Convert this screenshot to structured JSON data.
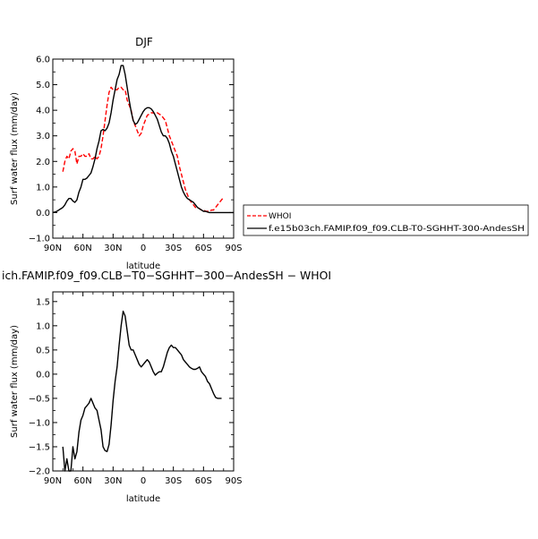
{
  "chart_data": [
    {
      "type": "line",
      "title": "DJF",
      "xlabel": "latitude",
      "ylabel": "Surf water flux (mm/day)",
      "xlim": [
        90,
        -90
      ],
      "ylim": [
        -1.0,
        6.0
      ],
      "xticks": [
        90,
        60,
        30,
        0,
        -30,
        -60,
        -90
      ],
      "xtick_labels": [
        "90N",
        "60N",
        "30N",
        "0",
        "30S",
        "60S",
        "90S"
      ],
      "yticks": [
        -1,
        0,
        1,
        2,
        3,
        4,
        5,
        6
      ],
      "ytick_labels": [
        "−1.0",
        "0.0",
        "1.0",
        "2.0",
        "3.0",
        "4.0",
        "5.0",
        "6.0"
      ],
      "legend_position": "outside-right",
      "series": [
        {
          "name": "WHOI",
          "color": "#ff0000",
          "dash": "dashed",
          "x": [
            80,
            78,
            76,
            74,
            72,
            70,
            68,
            66,
            64,
            62,
            60,
            58,
            56,
            54,
            52,
            50,
            48,
            46,
            44,
            42,
            40,
            38,
            36,
            34,
            32,
            30,
            28,
            26,
            24,
            22,
            20,
            18,
            16,
            14,
            12,
            10,
            8,
            6,
            4,
            2,
            0,
            -2,
            -4,
            -6,
            -8,
            -10,
            -12,
            -14,
            -16,
            -18,
            -20,
            -22,
            -24,
            -26,
            -28,
            -30,
            -32,
            -34,
            -36,
            -38,
            -40,
            -42,
            -44,
            -46,
            -48,
            -50,
            -52,
            -54,
            -56,
            -58,
            -60,
            -62,
            -64,
            -66,
            -68,
            -70,
            -72,
            -74,
            -76,
            -78,
            -80
          ],
          "y": [
            1.6,
            2.0,
            2.2,
            2.1,
            2.4,
            2.5,
            2.4,
            1.9,
            2.2,
            2.2,
            2.3,
            2.2,
            2.2,
            2.3,
            2.1,
            2.1,
            2.2,
            2.1,
            2.2,
            2.5,
            3.0,
            3.6,
            4.2,
            4.7,
            4.9,
            4.8,
            4.8,
            4.8,
            4.9,
            4.9,
            4.8,
            4.8,
            4.4,
            4.2,
            4.0,
            3.6,
            3.4,
            3.2,
            3.0,
            3.1,
            3.4,
            3.6,
            3.8,
            3.85,
            3.9,
            3.9,
            3.85,
            3.9,
            3.85,
            3.8,
            3.7,
            3.6,
            3.3,
            3.0,
            2.8,
            2.6,
            2.4,
            2.2,
            1.8,
            1.5,
            1.2,
            0.9,
            0.7,
            0.5,
            0.4,
            0.3,
            0.2,
            0.2,
            0.15,
            0.1,
            0.1,
            0.05,
            0.05,
            0.05,
            0.1,
            0.1,
            0.2,
            0.3,
            0.4,
            0.5,
            0.6
          ]
        },
        {
          "name": "f.e15b03ch.FAMIP.f09_f09.CLB-T0-SGHHT-300-AndesSH",
          "color": "#000000",
          "dash": "solid",
          "x": [
            90,
            88,
            86,
            84,
            82,
            80,
            78,
            76,
            74,
            72,
            70,
            68,
            66,
            64,
            62,
            60,
            58,
            56,
            54,
            52,
            50,
            48,
            46,
            44,
            42,
            40,
            38,
            36,
            34,
            32,
            30,
            28,
            26,
            24,
            22,
            20,
            18,
            16,
            14,
            12,
            10,
            8,
            6,
            4,
            2,
            0,
            -2,
            -4,
            -6,
            -8,
            -10,
            -12,
            -14,
            -16,
            -18,
            -20,
            -22,
            -24,
            -26,
            -28,
            -30,
            -32,
            -34,
            -36,
            -38,
            -40,
            -42,
            -44,
            -46,
            -48,
            -50,
            -52,
            -54,
            -56,
            -58,
            -60,
            -62,
            -64,
            -66,
            -68,
            -70,
            -72,
            -74,
            -76,
            -78,
            -80,
            -82,
            -84,
            -86,
            -88,
            -90
          ],
          "y": [
            0.0,
            0.02,
            0.05,
            0.1,
            0.15,
            0.2,
            0.3,
            0.45,
            0.55,
            0.55,
            0.45,
            0.4,
            0.5,
            0.8,
            1.0,
            1.3,
            1.3,
            1.35,
            1.45,
            1.55,
            1.8,
            2.1,
            2.5,
            2.8,
            3.2,
            3.25,
            3.2,
            3.3,
            3.5,
            3.9,
            4.4,
            4.8,
            5.2,
            5.4,
            5.75,
            5.75,
            5.4,
            4.9,
            4.4,
            3.95,
            3.6,
            3.45,
            3.5,
            3.65,
            3.8,
            3.95,
            4.05,
            4.1,
            4.1,
            4.05,
            3.95,
            3.8,
            3.65,
            3.4,
            3.15,
            3.0,
            3.0,
            2.9,
            2.7,
            2.4,
            2.2,
            1.9,
            1.6,
            1.3,
            1.0,
            0.8,
            0.65,
            0.55,
            0.5,
            0.45,
            0.4,
            0.3,
            0.2,
            0.15,
            0.1,
            0.05,
            0.05,
            0.02,
            0.0,
            0.0,
            0.0,
            0.0,
            0.0,
            0.0,
            0.0,
            0.0,
            0.0,
            0.0,
            0.0,
            0.0,
            0.0
          ]
        }
      ]
    },
    {
      "type": "line",
      "title": "ich.FAMIP.f09_f09.CLB−T0−SGHHT−300−AndesSH − WHOI",
      "xlabel": "latitude",
      "ylabel": "Surf water flux (mm/day)",
      "xlim": [
        90,
        -90
      ],
      "ylim": [
        -2.0,
        1.7
      ],
      "xticks": [
        90,
        60,
        30,
        0,
        -30,
        -60,
        -90
      ],
      "xtick_labels": [
        "90N",
        "60N",
        "30N",
        "0",
        "30S",
        "60S",
        "90S"
      ],
      "yticks": [
        -2.0,
        -1.5,
        -1.0,
        -0.5,
        0.0,
        0.5,
        1.0,
        1.5
      ],
      "ytick_labels": [
        "−2.0",
        "−1.5",
        "−1.0",
        "−0.5",
        "0.0",
        "0.5",
        "1.0",
        "1.5"
      ],
      "series": [
        {
          "name": "",
          "color": "#000000",
          "dash": "solid",
          "x": [
            80,
            78,
            76,
            74,
            72,
            70,
            68,
            66,
            64,
            62,
            60,
            58,
            56,
            54,
            52,
            50,
            48,
            46,
            44,
            42,
            40,
            38,
            36,
            34,
            32,
            30,
            28,
            26,
            24,
            22,
            20,
            18,
            16,
            14,
            12,
            10,
            8,
            6,
            4,
            2,
            0,
            -2,
            -4,
            -6,
            -8,
            -10,
            -12,
            -14,
            -16,
            -18,
            -20,
            -22,
            -24,
            -26,
            -28,
            -30,
            -32,
            -34,
            -36,
            -38,
            -40,
            -42,
            -44,
            -46,
            -48,
            -50,
            -52,
            -54,
            -56,
            -58,
            -60,
            -62,
            -64,
            -66,
            -68,
            -70,
            -72,
            -74,
            -76,
            -78
          ],
          "y": [
            -1.5,
            -2.0,
            -1.75,
            -2.0,
            -2.0,
            -1.5,
            -1.75,
            -1.6,
            -1.2,
            -0.95,
            -0.85,
            -0.7,
            -0.65,
            -0.6,
            -0.5,
            -0.6,
            -0.7,
            -0.75,
            -0.95,
            -1.15,
            -1.5,
            -1.58,
            -1.6,
            -1.45,
            -1.05,
            -0.55,
            -0.15,
            0.15,
            0.6,
            1.0,
            1.3,
            1.2,
            0.9,
            0.6,
            0.5,
            0.5,
            0.4,
            0.3,
            0.2,
            0.15,
            0.2,
            0.25,
            0.3,
            0.25,
            0.15,
            0.05,
            -0.02,
            0.02,
            0.05,
            0.05,
            0.15,
            0.3,
            0.45,
            0.55,
            0.6,
            0.55,
            0.55,
            0.5,
            0.45,
            0.4,
            0.3,
            0.25,
            0.2,
            0.15,
            0.12,
            0.1,
            0.1,
            0.12,
            0.15,
            0.05,
            0.0,
            -0.05,
            -0.15,
            -0.2,
            -0.3,
            -0.4,
            -0.48,
            -0.5,
            -0.5,
            -0.5
          ]
        }
      ]
    }
  ]
}
